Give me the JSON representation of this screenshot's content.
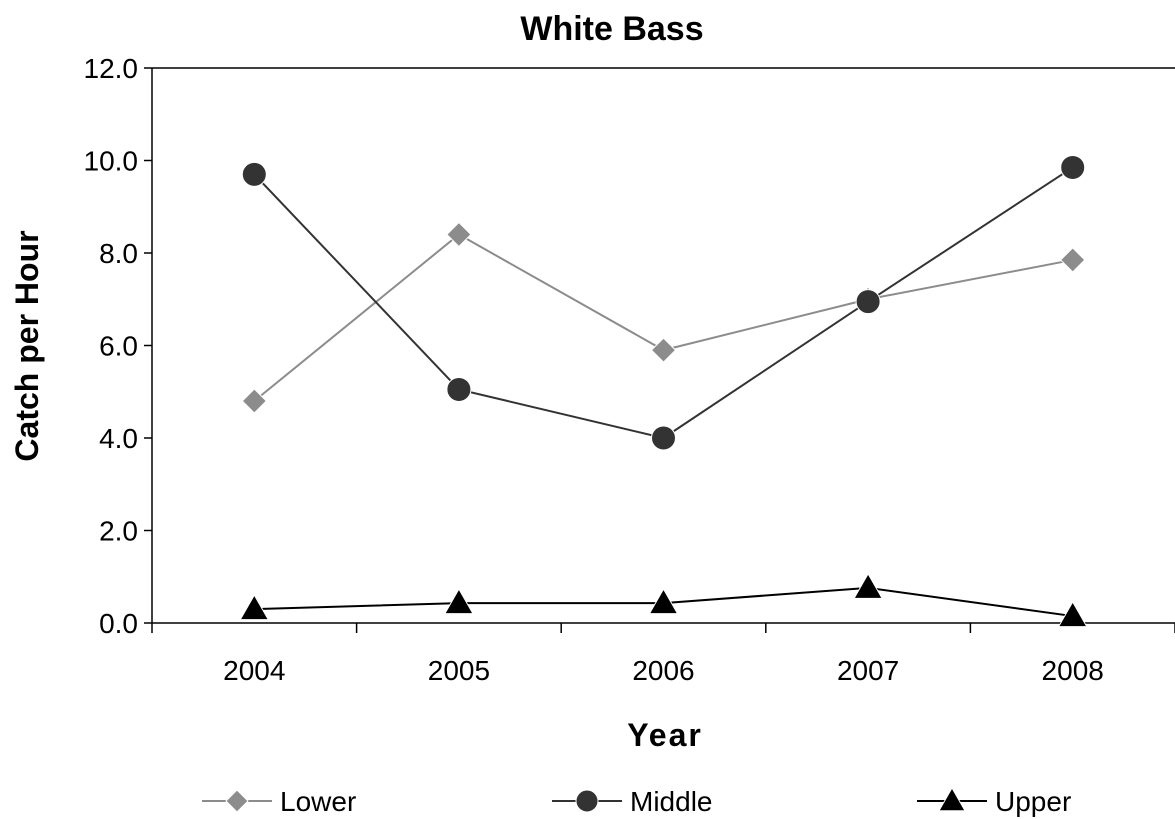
{
  "chart_data": {
    "type": "line",
    "title": "White Bass",
    "xlabel": "Year",
    "ylabel": "Catch per Hour",
    "categories": [
      "2004",
      "2005",
      "2006",
      "2007",
      "2008"
    ],
    "ylim": [
      0,
      12
    ],
    "yticks": [
      "0.0",
      "2.0",
      "4.0",
      "6.0",
      "8.0",
      "10.0",
      "12.0"
    ],
    "grid": false,
    "legend_position": "bottom",
    "series": [
      {
        "name": "Lower",
        "marker": "diamond",
        "color": "#8c8c8c",
        "values": [
          4.8,
          8.4,
          5.9,
          7.0,
          7.85
        ]
      },
      {
        "name": "Middle",
        "marker": "circle",
        "color": "#333333",
        "values": [
          9.7,
          5.05,
          4.0,
          6.95,
          9.85
        ]
      },
      {
        "name": "Upper",
        "marker": "triangle",
        "color": "#000000",
        "values": [
          0.3,
          0.43,
          0.43,
          0.76,
          0.15
        ]
      }
    ]
  }
}
